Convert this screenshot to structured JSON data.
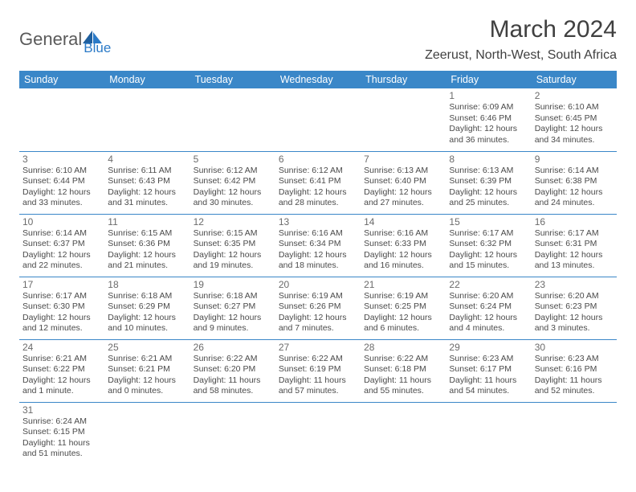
{
  "logo": {
    "text1": "General",
    "text2": "Blue"
  },
  "title": "March 2024",
  "location": "Zeerust, North-West, South Africa",
  "header_bg": "#3a87c8",
  "header_fg": "#ffffff",
  "border_color": "#3a87c8",
  "text_color": "#4a4a4a",
  "dayheaders": [
    "Sunday",
    "Monday",
    "Tuesday",
    "Wednesday",
    "Thursday",
    "Friday",
    "Saturday"
  ],
  "weeks": [
    [
      null,
      null,
      null,
      null,
      null,
      {
        "n": "1",
        "sr": "Sunrise: 6:09 AM",
        "ss": "Sunset: 6:46 PM",
        "d1": "Daylight: 12 hours",
        "d2": "and 36 minutes."
      },
      {
        "n": "2",
        "sr": "Sunrise: 6:10 AM",
        "ss": "Sunset: 6:45 PM",
        "d1": "Daylight: 12 hours",
        "d2": "and 34 minutes."
      }
    ],
    [
      {
        "n": "3",
        "sr": "Sunrise: 6:10 AM",
        "ss": "Sunset: 6:44 PM",
        "d1": "Daylight: 12 hours",
        "d2": "and 33 minutes."
      },
      {
        "n": "4",
        "sr": "Sunrise: 6:11 AM",
        "ss": "Sunset: 6:43 PM",
        "d1": "Daylight: 12 hours",
        "d2": "and 31 minutes."
      },
      {
        "n": "5",
        "sr": "Sunrise: 6:12 AM",
        "ss": "Sunset: 6:42 PM",
        "d1": "Daylight: 12 hours",
        "d2": "and 30 minutes."
      },
      {
        "n": "6",
        "sr": "Sunrise: 6:12 AM",
        "ss": "Sunset: 6:41 PM",
        "d1": "Daylight: 12 hours",
        "d2": "and 28 minutes."
      },
      {
        "n": "7",
        "sr": "Sunrise: 6:13 AM",
        "ss": "Sunset: 6:40 PM",
        "d1": "Daylight: 12 hours",
        "d2": "and 27 minutes."
      },
      {
        "n": "8",
        "sr": "Sunrise: 6:13 AM",
        "ss": "Sunset: 6:39 PM",
        "d1": "Daylight: 12 hours",
        "d2": "and 25 minutes."
      },
      {
        "n": "9",
        "sr": "Sunrise: 6:14 AM",
        "ss": "Sunset: 6:38 PM",
        "d1": "Daylight: 12 hours",
        "d2": "and 24 minutes."
      }
    ],
    [
      {
        "n": "10",
        "sr": "Sunrise: 6:14 AM",
        "ss": "Sunset: 6:37 PM",
        "d1": "Daylight: 12 hours",
        "d2": "and 22 minutes."
      },
      {
        "n": "11",
        "sr": "Sunrise: 6:15 AM",
        "ss": "Sunset: 6:36 PM",
        "d1": "Daylight: 12 hours",
        "d2": "and 21 minutes."
      },
      {
        "n": "12",
        "sr": "Sunrise: 6:15 AM",
        "ss": "Sunset: 6:35 PM",
        "d1": "Daylight: 12 hours",
        "d2": "and 19 minutes."
      },
      {
        "n": "13",
        "sr": "Sunrise: 6:16 AM",
        "ss": "Sunset: 6:34 PM",
        "d1": "Daylight: 12 hours",
        "d2": "and 18 minutes."
      },
      {
        "n": "14",
        "sr": "Sunrise: 6:16 AM",
        "ss": "Sunset: 6:33 PM",
        "d1": "Daylight: 12 hours",
        "d2": "and 16 minutes."
      },
      {
        "n": "15",
        "sr": "Sunrise: 6:17 AM",
        "ss": "Sunset: 6:32 PM",
        "d1": "Daylight: 12 hours",
        "d2": "and 15 minutes."
      },
      {
        "n": "16",
        "sr": "Sunrise: 6:17 AM",
        "ss": "Sunset: 6:31 PM",
        "d1": "Daylight: 12 hours",
        "d2": "and 13 minutes."
      }
    ],
    [
      {
        "n": "17",
        "sr": "Sunrise: 6:17 AM",
        "ss": "Sunset: 6:30 PM",
        "d1": "Daylight: 12 hours",
        "d2": "and 12 minutes."
      },
      {
        "n": "18",
        "sr": "Sunrise: 6:18 AM",
        "ss": "Sunset: 6:29 PM",
        "d1": "Daylight: 12 hours",
        "d2": "and 10 minutes."
      },
      {
        "n": "19",
        "sr": "Sunrise: 6:18 AM",
        "ss": "Sunset: 6:27 PM",
        "d1": "Daylight: 12 hours",
        "d2": "and 9 minutes."
      },
      {
        "n": "20",
        "sr": "Sunrise: 6:19 AM",
        "ss": "Sunset: 6:26 PM",
        "d1": "Daylight: 12 hours",
        "d2": "and 7 minutes."
      },
      {
        "n": "21",
        "sr": "Sunrise: 6:19 AM",
        "ss": "Sunset: 6:25 PM",
        "d1": "Daylight: 12 hours",
        "d2": "and 6 minutes."
      },
      {
        "n": "22",
        "sr": "Sunrise: 6:20 AM",
        "ss": "Sunset: 6:24 PM",
        "d1": "Daylight: 12 hours",
        "d2": "and 4 minutes."
      },
      {
        "n": "23",
        "sr": "Sunrise: 6:20 AM",
        "ss": "Sunset: 6:23 PM",
        "d1": "Daylight: 12 hours",
        "d2": "and 3 minutes."
      }
    ],
    [
      {
        "n": "24",
        "sr": "Sunrise: 6:21 AM",
        "ss": "Sunset: 6:22 PM",
        "d1": "Daylight: 12 hours",
        "d2": "and 1 minute."
      },
      {
        "n": "25",
        "sr": "Sunrise: 6:21 AM",
        "ss": "Sunset: 6:21 PM",
        "d1": "Daylight: 12 hours",
        "d2": "and 0 minutes."
      },
      {
        "n": "26",
        "sr": "Sunrise: 6:22 AM",
        "ss": "Sunset: 6:20 PM",
        "d1": "Daylight: 11 hours",
        "d2": "and 58 minutes."
      },
      {
        "n": "27",
        "sr": "Sunrise: 6:22 AM",
        "ss": "Sunset: 6:19 PM",
        "d1": "Daylight: 11 hours",
        "d2": "and 57 minutes."
      },
      {
        "n": "28",
        "sr": "Sunrise: 6:22 AM",
        "ss": "Sunset: 6:18 PM",
        "d1": "Daylight: 11 hours",
        "d2": "and 55 minutes."
      },
      {
        "n": "29",
        "sr": "Sunrise: 6:23 AM",
        "ss": "Sunset: 6:17 PM",
        "d1": "Daylight: 11 hours",
        "d2": "and 54 minutes."
      },
      {
        "n": "30",
        "sr": "Sunrise: 6:23 AM",
        "ss": "Sunset: 6:16 PM",
        "d1": "Daylight: 11 hours",
        "d2": "and 52 minutes."
      }
    ],
    [
      {
        "n": "31",
        "sr": "Sunrise: 6:24 AM",
        "ss": "Sunset: 6:15 PM",
        "d1": "Daylight: 11 hours",
        "d2": "and 51 minutes."
      },
      null,
      null,
      null,
      null,
      null,
      null
    ]
  ]
}
